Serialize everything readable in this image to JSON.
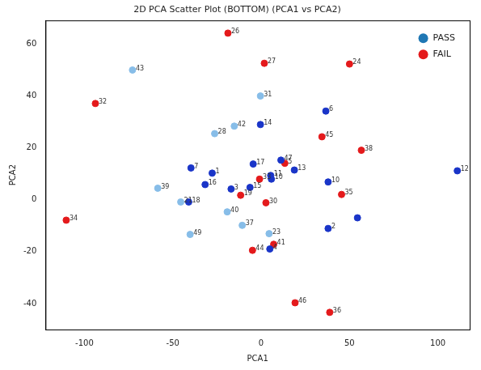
{
  "chart_data": {
    "type": "scatter",
    "title": "2D PCA Scatter Plot (BOTTOM) (PCA1 vs PCA2)",
    "x_label": "PCA1",
    "y_label": "PCA2",
    "xlim": [
      -122,
      118
    ],
    "ylim": [
      -50,
      69
    ],
    "xticks": [
      -100,
      -50,
      0,
      50,
      100
    ],
    "yticks": [
      -40,
      -20,
      0,
      20,
      40,
      60
    ],
    "grid": false,
    "legend": "upper right",
    "marker": "circle",
    "series": [
      {
        "name": "PASS",
        "color": "#1f77b4",
        "colors": [
          "#87bde8",
          "#87bde8",
          "#1a35c8",
          "#87bde8",
          "#87bde8",
          "#1a35c8",
          "#1a35c8",
          "#1a35c8",
          "#1a35c8",
          "#1a35c8",
          "#1a35c8",
          "#1a35c8",
          "#1a35c8",
          "#1a35c8",
          "#1a35c8",
          "#1a35c8",
          "#87bde8",
          "#1a35c8",
          "#1a35c8",
          "#87bde8",
          "#1a35c8",
          "#87bde8",
          "#1a35c8",
          "#1a35c8",
          "#87bde8",
          "#87bde8",
          "#87bde8",
          "#1a35c8"
        ],
        "x": [
          -72.8,
          -0.4,
          36.6,
          -15.2,
          -26.3,
          -0.4,
          111,
          -39.7,
          -27.7,
          -4.5,
          11.2,
          18.8,
          5.4,
          5.8,
          -31.7,
          -17,
          -58.5,
          -6.3,
          37.9,
          -45.5,
          -41,
          -19.2,
          37.9,
          54.5,
          -10.7,
          -40.2,
          4.5,
          4.9
        ],
        "values": [
          49.9,
          39.9,
          34.1,
          28.3,
          25.4,
          28.9,
          11.1,
          12.2,
          10.2,
          13.7,
          15.2,
          11.4,
          9.3,
          7.9,
          5.8,
          4.1,
          4.4,
          4.7,
          6.8,
          -0.9,
          -0.9,
          -4.7,
          -11.1,
          -7.0,
          -9.9,
          -13.4,
          -13.1,
          -19
        ],
        "labels": [
          "43",
          "31",
          "6",
          "42",
          "28",
          "14",
          "12",
          "7",
          "1",
          "17",
          "47",
          "13",
          "11",
          "10",
          "16",
          "3",
          "39",
          "15",
          "10",
          "21",
          "18",
          "40",
          "2",
          null,
          "37",
          "49",
          "23",
          "4"
        ]
      },
      {
        "name": "FAIL",
        "color": "#e41a1c",
        "x": [
          -93.8,
          -18.8,
          1.8,
          50,
          34.4,
          56.7,
          13.4,
          -0.9,
          -11.6,
          45.5,
          2.7,
          7.1,
          -4.9,
          -110.3,
          19.2,
          38.8
        ],
        "values": [
          37.0,
          64.1,
          52.5,
          52.2,
          24.2,
          19.0,
          14.0,
          7.9,
          1.7,
          2.0,
          -1.2,
          -17.2,
          -19.5,
          -7.9,
          -39.7,
          -43.4
        ],
        "labels": [
          "32",
          "26",
          "27",
          "24",
          "45",
          "38",
          "5",
          "33",
          "19",
          "35",
          "30",
          "41",
          "44",
          "34",
          "46",
          "36"
        ]
      }
    ]
  }
}
